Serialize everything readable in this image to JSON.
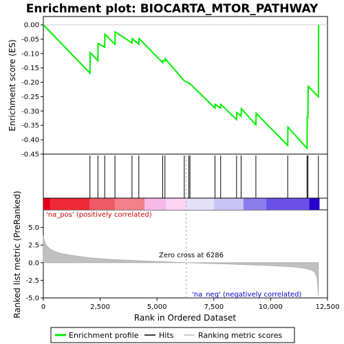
{
  "chart_data": {
    "type": "line",
    "title": "Enrichment plot: BIOCARTA_MTOR_PATHWAY",
    "xlabel": "Rank in Ordered Dataset",
    "top_panel": {
      "ylabel": "Enrichment score (ES)",
      "ylim": [
        -0.45,
        0.0
      ],
      "yticks": [
        0.0,
        -0.05,
        -0.1,
        -0.15,
        -0.2,
        -0.25,
        -0.3,
        -0.35,
        -0.4,
        -0.45
      ],
      "ytick_labels": [
        "0.00",
        "-0.05",
        "-0.10",
        "-0.15",
        "-0.20",
        "-0.25",
        "-0.30",
        "-0.35",
        "-0.40",
        "-0.45"
      ],
      "series": [
        {
          "name": "Enrichment profile",
          "color": "#00ee00",
          "x": [
            0,
            2050,
            2060,
            2400,
            2410,
            2700,
            2710,
            3150,
            3160,
            3900,
            3910,
            4200,
            4210,
            5250,
            5260,
            5350,
            5360,
            6200,
            6400,
            6450,
            7550,
            7560,
            7800,
            7810,
            8500,
            8510,
            8700,
            8710,
            9350,
            9360,
            10750,
            10760,
            11600,
            11610,
            11640,
            11650,
            12100,
            12110
          ],
          "y": [
            0.0,
            -0.168,
            -0.097,
            -0.125,
            -0.065,
            -0.078,
            -0.033,
            -0.068,
            -0.025,
            -0.063,
            -0.048,
            -0.068,
            -0.048,
            -0.132,
            -0.125,
            -0.125,
            -0.118,
            -0.195,
            -0.203,
            -0.205,
            -0.29,
            -0.277,
            -0.29,
            -0.277,
            -0.33,
            -0.305,
            -0.318,
            -0.292,
            -0.348,
            -0.308,
            -0.42,
            -0.356,
            -0.43,
            -0.32,
            -0.32,
            -0.214,
            -0.25,
            0.0
          ]
        }
      ]
    },
    "hits_panel": {
      "legend_label": "Hits",
      "hit_ranks": [
        2050,
        2400,
        2700,
        3150,
        3900,
        4200,
        5250,
        5350,
        6200,
        6400,
        6450,
        7550,
        7800,
        8500,
        8700,
        9350,
        10750,
        11600,
        11640,
        12100
      ]
    },
    "ranked_panel": {
      "ylabel": "Ranked list metric (PreRanked)",
      "legend_label": "Ranking metric scores",
      "ylim": [
        -5.0,
        7.5
      ],
      "yticks": [
        5.0,
        2.5,
        0.0,
        -2.5,
        -5.0
      ],
      "ytick_labels": [
        "5.0",
        "2.5",
        "0.0",
        "-2.5",
        "-5.0"
      ],
      "profile_x": [
        0,
        50,
        150,
        300,
        500,
        800,
        1200,
        2000,
        3000,
        4000,
        5000,
        6286,
        7000,
        8000,
        9000,
        10000,
        11000,
        11500,
        11800,
        11950,
        12050,
        12100
      ],
      "profile_y": [
        3.8,
        3.0,
        2.4,
        1.9,
        1.6,
        1.3,
        1.05,
        0.7,
        0.45,
        0.3,
        0.18,
        0.0,
        -0.08,
        -0.18,
        -0.3,
        -0.42,
        -0.6,
        -0.8,
        -1.05,
        -1.4,
        -2.2,
        -4.7
      ],
      "pos_label": "'na_pos' (positively correlated)",
      "neg_label": "'na_neg' (negatively correlated)",
      "zero_cross_label": "Zero cross at 6286",
      "zero_cross": 6286
    },
    "xlim": [
      0,
      12500
    ],
    "xticks": [
      0,
      2500,
      5000,
      7500,
      10000,
      12500
    ],
    "xtick_labels": [
      "0",
      "2,500",
      "5,000",
      "7,500",
      "10,000",
      "12,500"
    ],
    "heat_bar": {
      "segments": [
        {
          "from": 0,
          "to": 300,
          "color": "#e8001a"
        },
        {
          "from": 300,
          "to": 2050,
          "color": "#ee2a36"
        },
        {
          "from": 2050,
          "to": 3150,
          "color": "#f05a66"
        },
        {
          "from": 3150,
          "to": 4450,
          "color": "#f4808a"
        },
        {
          "from": 4450,
          "to": 5400,
          "color": "#f8b8e8"
        },
        {
          "from": 5400,
          "to": 6286,
          "color": "#fad4f4"
        },
        {
          "from": 6286,
          "to": 7500,
          "color": "#e4e0fa"
        },
        {
          "from": 7500,
          "to": 8800,
          "color": "#cac4f8"
        },
        {
          "from": 8800,
          "to": 9800,
          "color": "#8c7cf0"
        },
        {
          "from": 9800,
          "to": 11700,
          "color": "#6a50e8"
        },
        {
          "from": 11700,
          "to": 12150,
          "color": "#2a00cc"
        }
      ]
    },
    "legend": [
      {
        "label": "Enrichment profile",
        "color": "#00ee00"
      },
      {
        "label": "Hits",
        "color": "#000000"
      },
      {
        "label": "Ranking metric scores",
        "color": "#bbbbbb"
      }
    ]
  }
}
